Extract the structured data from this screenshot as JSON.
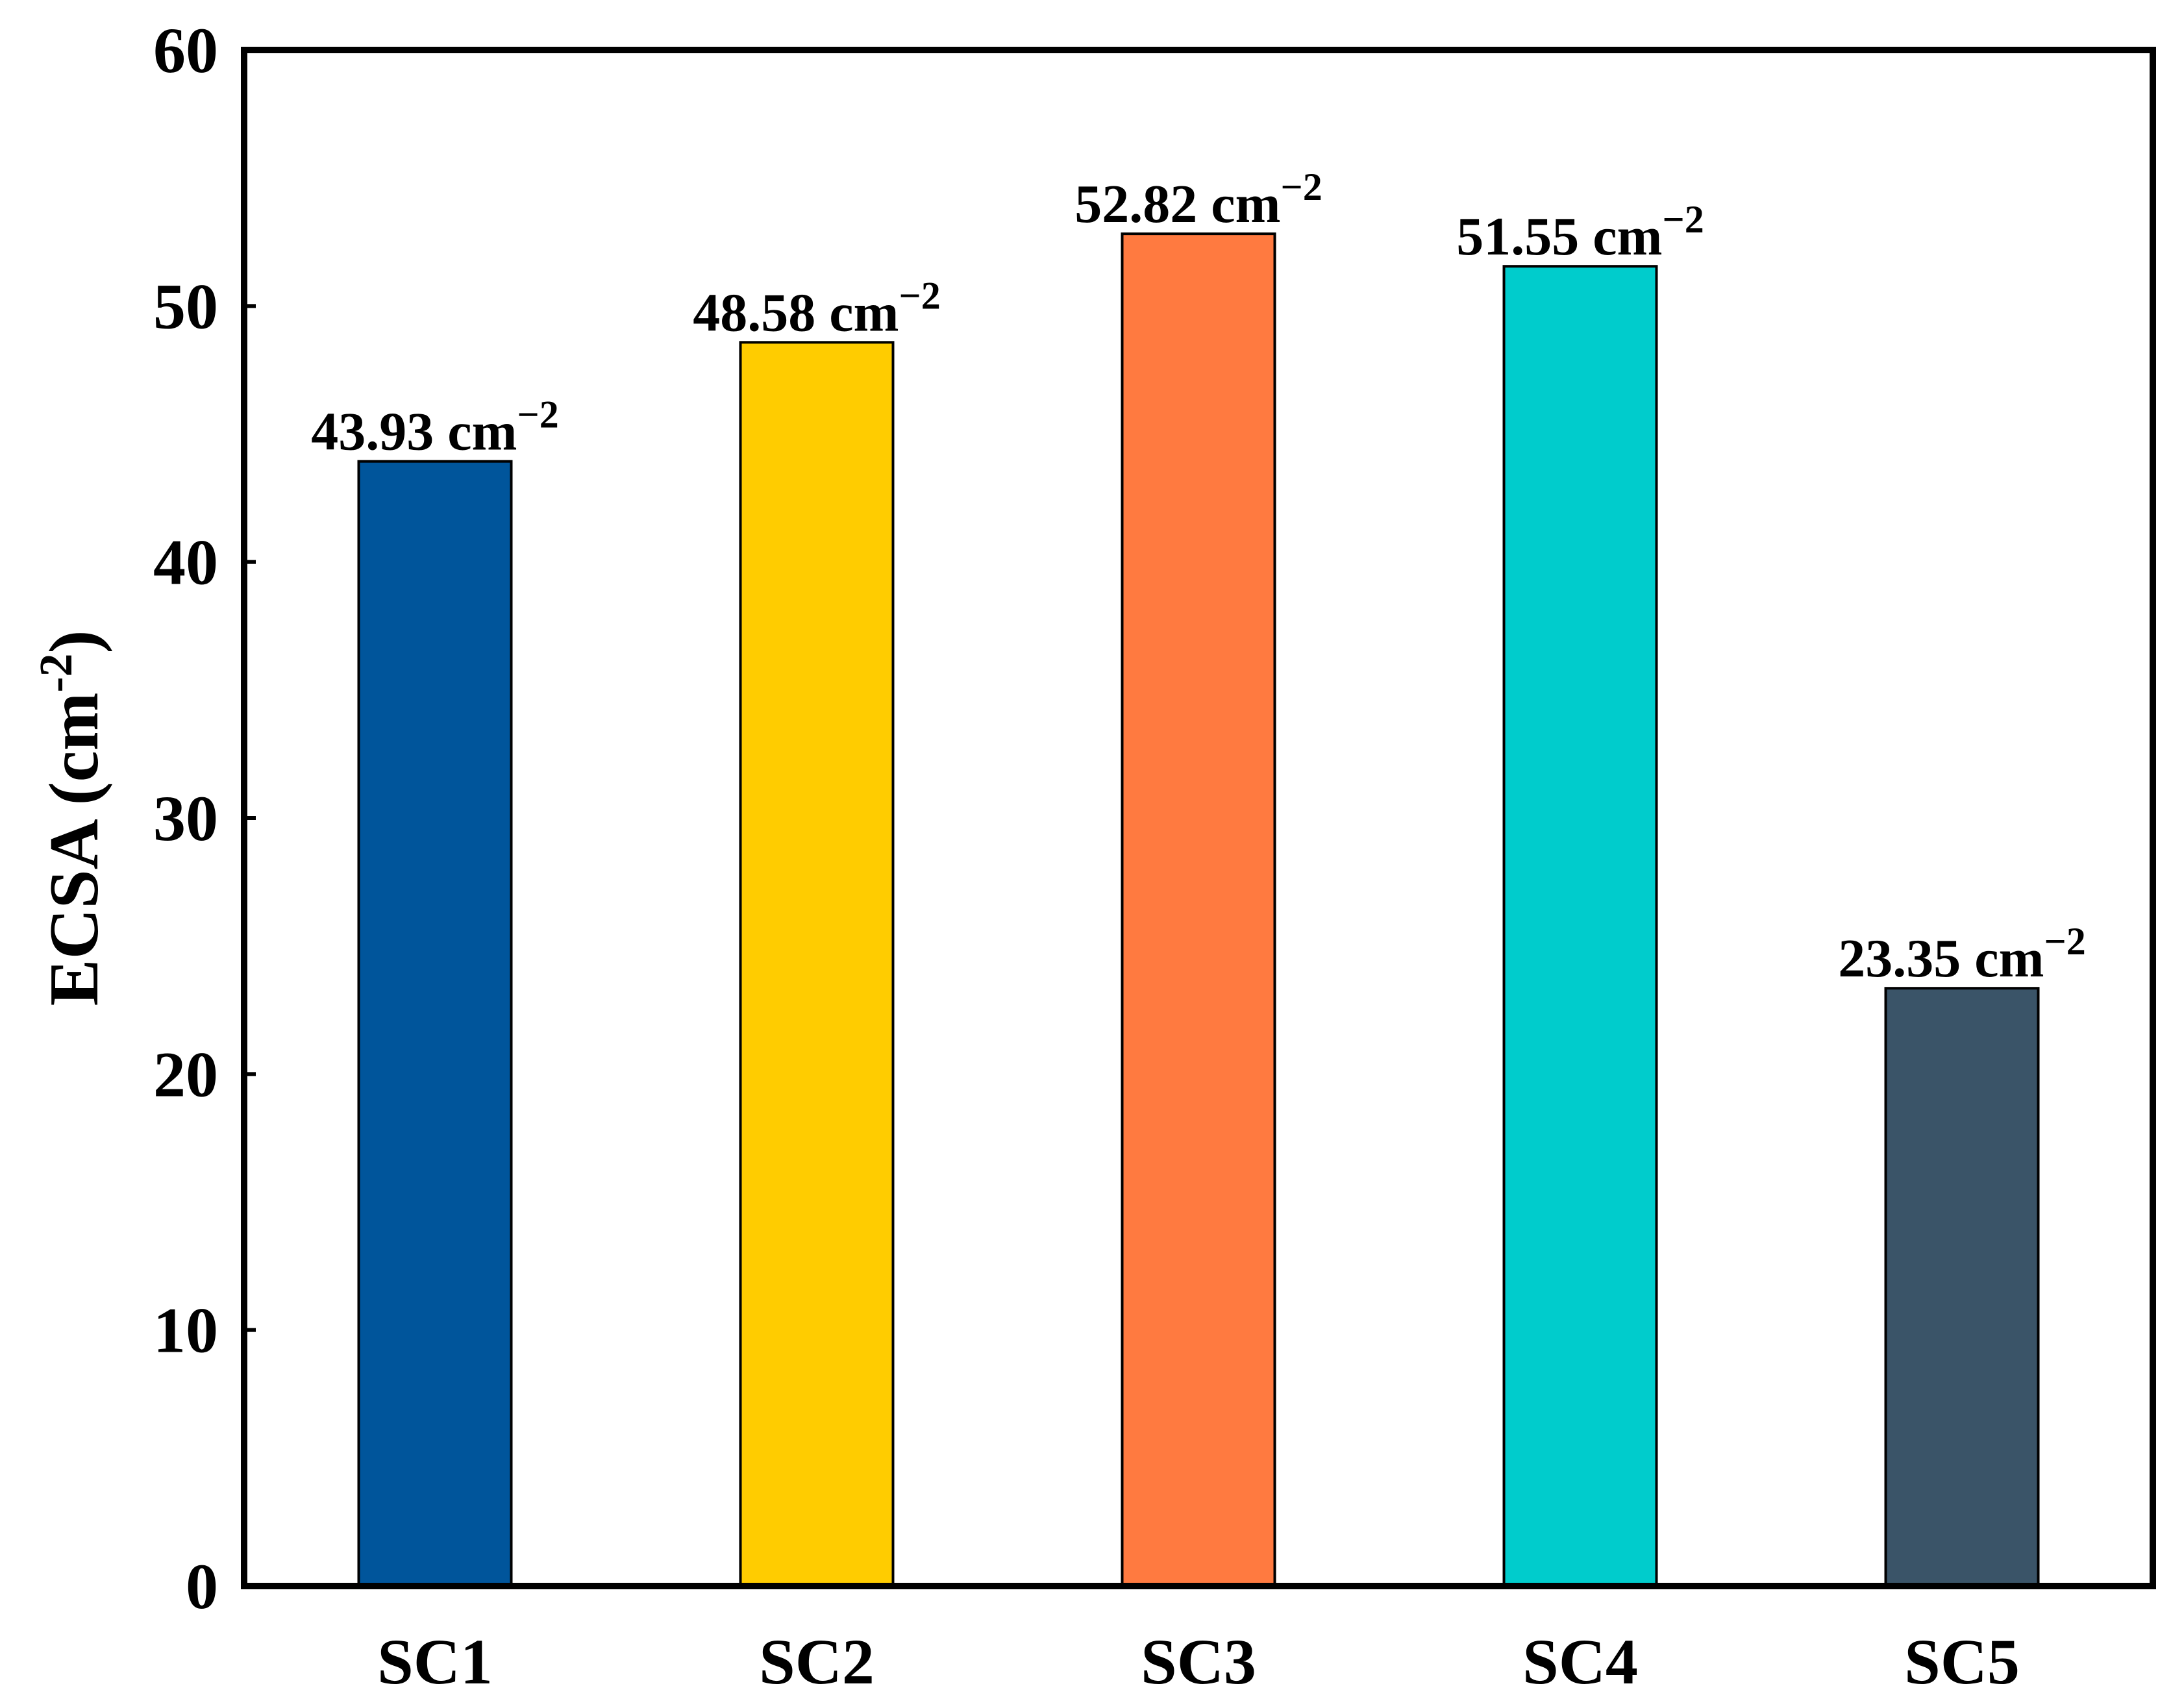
{
  "chart_data": {
    "type": "bar",
    "title": "",
    "xlabel": "",
    "ylabel": "ECSA (cm",
    "ylabel_sup": "-2",
    "ylabel_close": ")",
    "ylim": [
      0,
      60
    ],
    "yticks": [
      0,
      10,
      20,
      30,
      40,
      50,
      60
    ],
    "grid": false,
    "categories": [
      "SC1",
      "SC2",
      "SC3",
      "SC4",
      "SC5"
    ],
    "values": [
      43.93,
      48.58,
      52.82,
      51.55,
      23.35
    ],
    "value_labels": [
      "43.93 cm",
      "48.58 cm",
      "52.82 cm",
      "51.55 cm",
      "23.35 cm"
    ],
    "value_label_sup": "−2",
    "colors": [
      "#00559B",
      "#FFCC00",
      "#FF7A40",
      "#00CCCC",
      "#3A5468"
    ]
  }
}
